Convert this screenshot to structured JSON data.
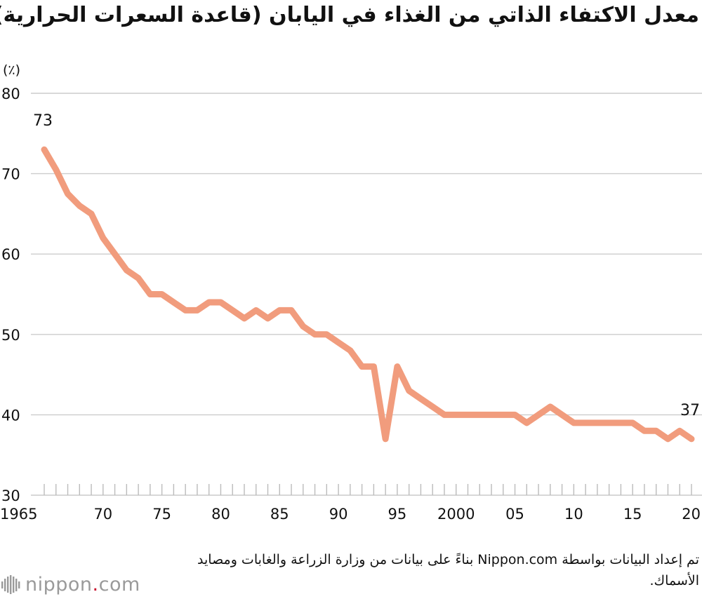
{
  "title": "معدل الاكتفاء الذاتي من الغذاء في اليابان (قاعدة السعرات الحرارية)",
  "source_text": "تم إعداد البيانات بواسطة Nippon.com بناءً على بيانات من وزارة الزراعة والغابات ومصايد الأسماك.",
  "logo": {
    "name": "nippon",
    "dot": ".",
    "suffix": "com",
    "icon": "nippon-logo-icon"
  },
  "colors": {
    "line": "#f19c7d",
    "grid": "#cccccc",
    "text": "#111111"
  },
  "chart_data": {
    "type": "line",
    "unit_label": "(٪)",
    "ylim": [
      30,
      80
    ],
    "yticks": [
      30,
      40,
      50,
      60,
      70,
      80
    ],
    "xlim": [
      1965,
      2020
    ],
    "xtick_labels": [
      {
        "year": 1965,
        "label": "1965"
      },
      {
        "year": 1970,
        "label": "70"
      },
      {
        "year": 1975,
        "label": "75"
      },
      {
        "year": 1980,
        "label": "80"
      },
      {
        "year": 1985,
        "label": "85"
      },
      {
        "year": 1990,
        "label": "90"
      },
      {
        "year": 1995,
        "label": "95"
      },
      {
        "year": 2000,
        "label": "2000"
      },
      {
        "year": 2005,
        "label": "05"
      },
      {
        "year": 2010,
        "label": "10"
      },
      {
        "year": 2015,
        "label": "15"
      },
      {
        "year": 2020,
        "label": "20"
      }
    ],
    "grid": true,
    "x": [
      1965,
      1966,
      1967,
      1968,
      1969,
      1970,
      1971,
      1972,
      1973,
      1974,
      1975,
      1976,
      1977,
      1978,
      1979,
      1980,
      1981,
      1982,
      1983,
      1984,
      1985,
      1986,
      1987,
      1988,
      1989,
      1990,
      1991,
      1992,
      1993,
      1994,
      1995,
      1996,
      1997,
      1998,
      1999,
      2000,
      2001,
      2002,
      2003,
      2004,
      2005,
      2006,
      2007,
      2008,
      2009,
      2010,
      2011,
      2012,
      2013,
      2014,
      2015,
      2016,
      2017,
      2018,
      2019,
      2020
    ],
    "values": [
      73,
      70.5,
      67.5,
      66,
      65,
      62,
      60,
      58,
      57,
      55,
      55,
      54,
      53,
      53,
      54,
      54,
      53,
      52,
      53,
      52,
      53,
      53,
      51,
      50,
      50,
      49,
      48,
      46,
      46,
      37,
      46,
      43,
      42,
      41,
      40,
      40,
      40,
      40,
      40,
      40,
      40,
      39,
      40,
      41,
      40,
      39,
      39,
      39,
      39,
      39,
      39,
      38,
      38,
      37,
      38,
      37
    ],
    "annotations": [
      {
        "year": 1965,
        "value": 73,
        "label": "73"
      },
      {
        "year": 2020,
        "value": 37,
        "label": "37"
      }
    ]
  }
}
